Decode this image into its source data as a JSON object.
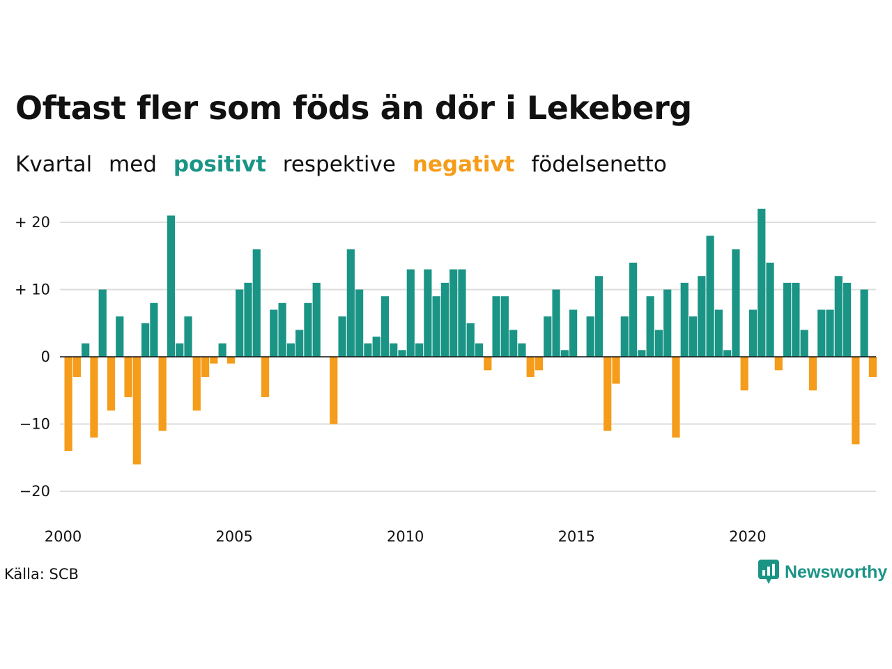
{
  "title": "Oftast fler som föds än dör i Lekeberg",
  "subtitle": {
    "part1": "Kvartal",
    "part2": "med",
    "positive": "positivt",
    "part3": "respektive",
    "negative": "negativt",
    "part4": "födelsenetto"
  },
  "source": "Källa: SCB",
  "brand": "Newsworthy",
  "colors": {
    "positive": "#1a9485",
    "negative": "#f59c1a",
    "grid": "#dddddd",
    "zero": "#111111"
  },
  "chart_data": {
    "type": "bar",
    "x_start": "2000 Q1",
    "values": [
      -14,
      -3,
      2,
      -12,
      10,
      -8,
      6,
      -6,
      -16,
      5,
      8,
      -11,
      21,
      2,
      6,
      -8,
      -3,
      -1,
      2,
      -1,
      10,
      11,
      16,
      -6,
      7,
      8,
      2,
      4,
      8,
      11,
      0,
      -10,
      6,
      16,
      10,
      2,
      3,
      9,
      2,
      1,
      13,
      2,
      13,
      9,
      11,
      13,
      13,
      5,
      2,
      -2,
      9,
      9,
      4,
      2,
      -3,
      -2,
      6,
      10,
      1,
      7,
      0,
      6,
      12,
      -11,
      -4,
      6,
      14,
      1,
      9,
      4,
      10,
      -12,
      11,
      6,
      12,
      18,
      7,
      1,
      16,
      -5,
      7,
      22,
      14,
      -2,
      11,
      11,
      4,
      -5,
      7,
      7,
      12,
      11,
      -13,
      10,
      -3
    ],
    "x_ticks": [
      "2000",
      "2005",
      "2010",
      "2015",
      "2020"
    ],
    "y_ticks": [
      20,
      10,
      0,
      -10,
      -20
    ],
    "y_tick_labels": [
      "+ 20",
      "+ 10",
      "0",
      "−10",
      "−20"
    ],
    "ylim": [
      -22,
      23
    ],
    "grid": true
  }
}
